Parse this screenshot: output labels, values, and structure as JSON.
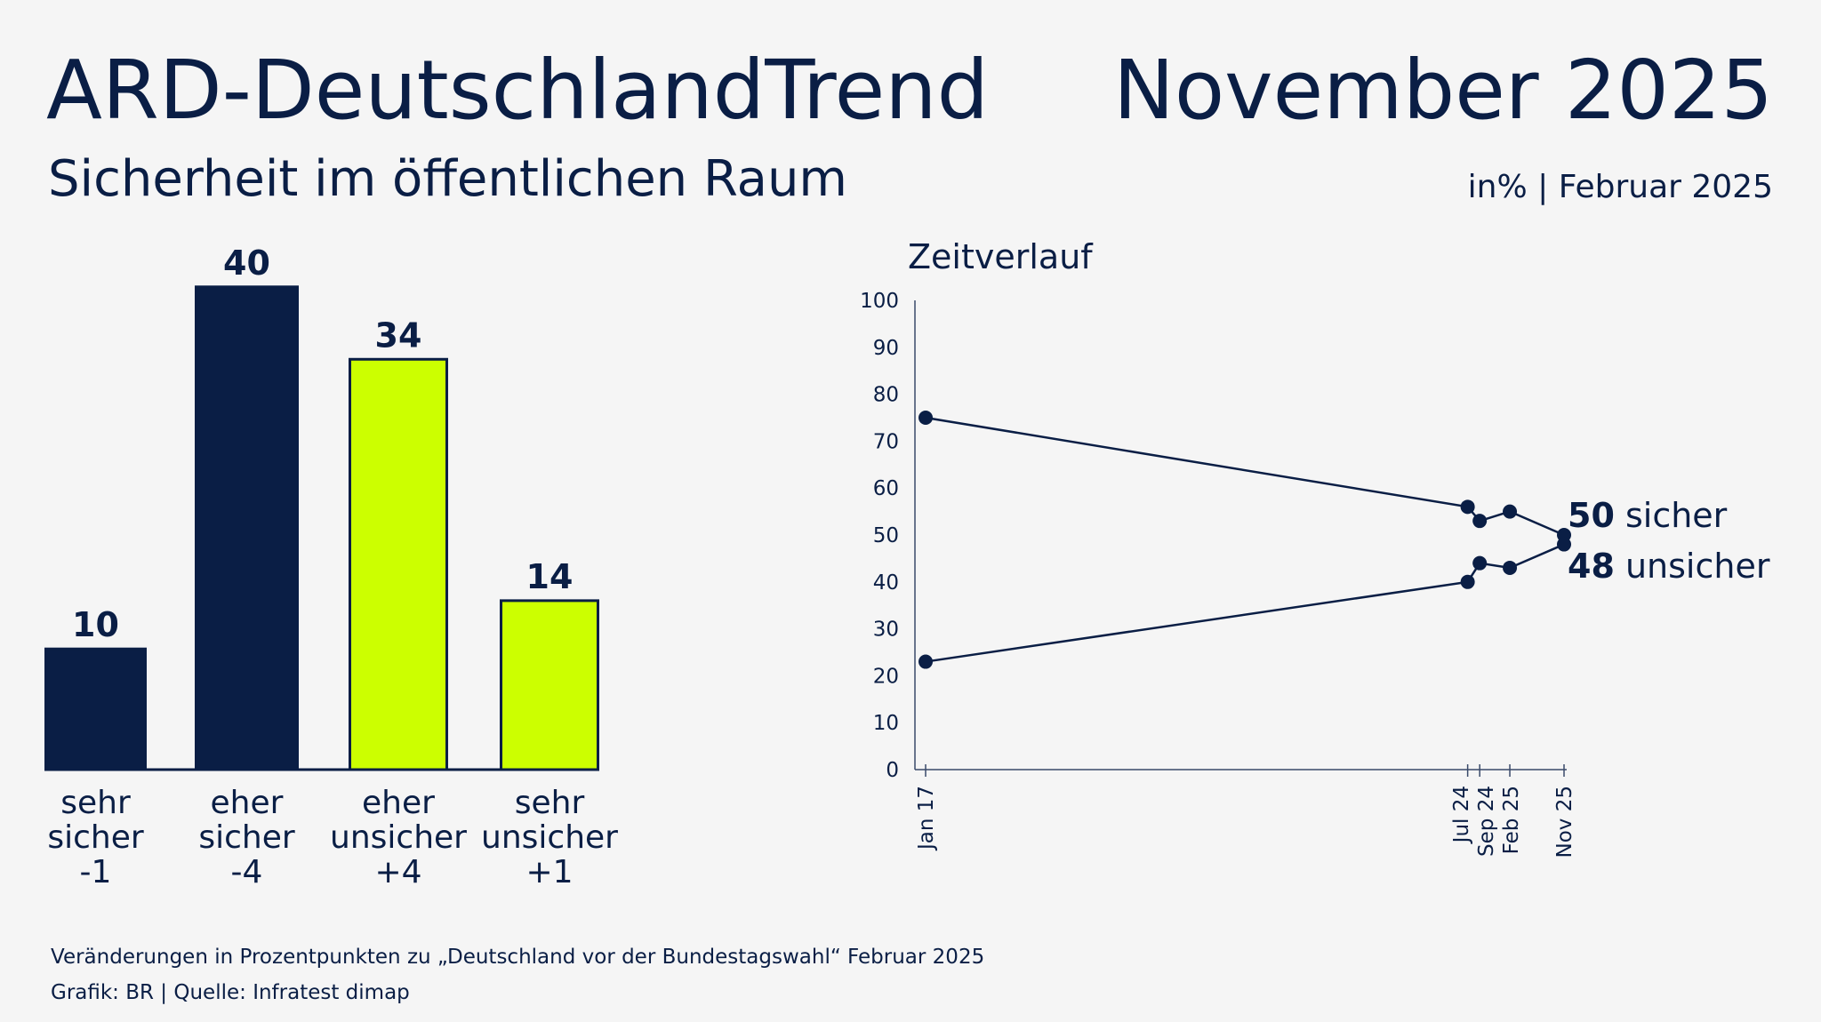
{
  "header": {
    "title": "ARD-DeutschlandTrend",
    "date": "November 2025",
    "subtitle": "Sicherheit im öffentlichen Raum",
    "unit_note": "in% | Februar 2025"
  },
  "colors": {
    "navy": "#0a1e45",
    "lime": "#ccff00",
    "background": "#f5f5f5"
  },
  "chart_data": [
    {
      "type": "bar",
      "categories": [
        [
          "sehr",
          "sicher",
          "-1"
        ],
        [
          "eher",
          "sicher",
          "-4"
        ],
        [
          "eher",
          "unsicher",
          "+4"
        ],
        [
          "sehr",
          "unsicher",
          "+1"
        ]
      ],
      "values": [
        10,
        40,
        34,
        14
      ],
      "changes": [
        -1,
        -4,
        4,
        1
      ],
      "bar_colors": [
        "#0a1e45",
        "#0a1e45",
        "#ccff00",
        "#ccff00"
      ],
      "ylim": [
        0,
        40
      ]
    },
    {
      "type": "line",
      "title": "Zeitverlauf",
      "x": [
        "2017-01",
        "2024-07",
        "2024-09",
        "2025-02",
        "2025-11"
      ],
      "xtick_labels": [
        "Jan 17",
        "Jul 24",
        "Sep 24",
        "Feb 25",
        "Nov 25"
      ],
      "ylim": [
        0,
        100
      ],
      "yticks": [
        0,
        10,
        20,
        30,
        40,
        50,
        60,
        70,
        80,
        90,
        100
      ],
      "grid": false,
      "series": [
        {
          "name": "sicher",
          "values": [
            75,
            56,
            53,
            55,
            50
          ],
          "end_label_value": "50",
          "end_label_name": "sicher"
        },
        {
          "name": "unsicher",
          "values": [
            23,
            40,
            44,
            43,
            48
          ],
          "end_label_value": "48",
          "end_label_name": "unsicher"
        }
      ]
    }
  ],
  "footer": {
    "note": "Veränderungen in Prozentpunkten zu „Deutschland vor der Bundestagswahl“ Februar 2025",
    "source": "Grafik: BR | Quelle: Infratest dimap"
  }
}
